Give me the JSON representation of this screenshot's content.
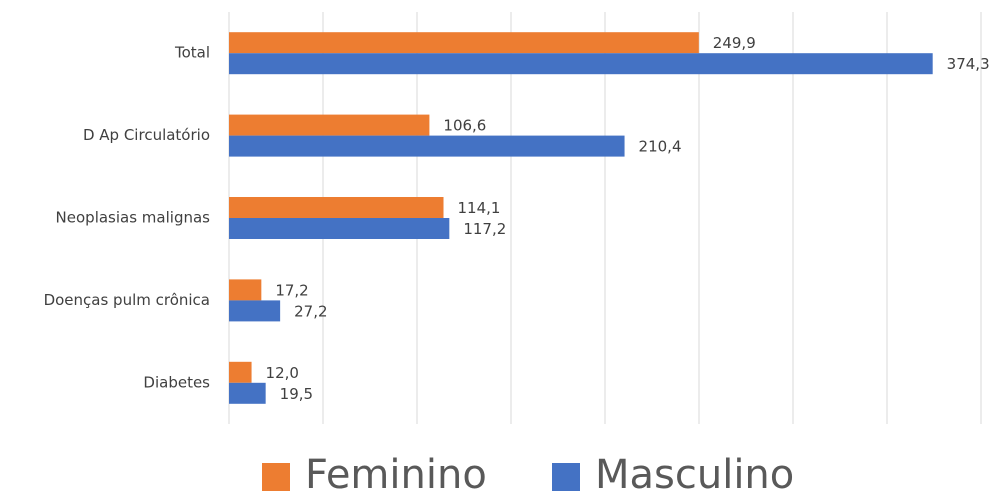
{
  "chart_data": {
    "type": "hbar",
    "categories": [
      "Total",
      "D Ap Circulatório",
      "Neoplasias malignas",
      "Doenças pulm crônica",
      "Diabetes"
    ],
    "series": [
      {
        "name": "Feminino",
        "color": "#ed7d31",
        "values": [
          249.9,
          106.6,
          114.1,
          17.2,
          12.0
        ],
        "value_labels": [
          "249,9",
          "106,6",
          "114,1",
          "17,2",
          "12,0"
        ]
      },
      {
        "name": "Masculino",
        "color": "#4472c4",
        "values": [
          374.3,
          210.4,
          117.2,
          27.2,
          19.5
        ],
        "value_labels": [
          "374,3",
          "210,4",
          "117,2",
          "27,2",
          "19,5"
        ]
      }
    ],
    "xlim": [
      0,
      400
    ],
    "xticks": [
      0,
      50,
      100,
      150,
      200,
      250,
      300,
      350,
      400
    ],
    "grid": true,
    "legend": "bottom"
  }
}
